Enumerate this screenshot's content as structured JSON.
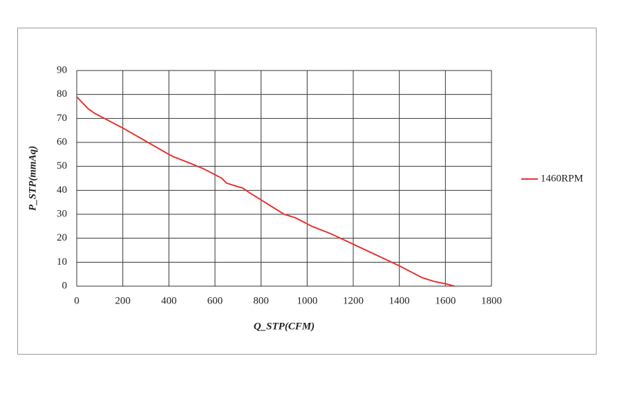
{
  "chart_data": {
    "type": "line",
    "x_label": "Q_STP(CFM)",
    "y_label": "P_STP(mmAq)",
    "x": [
      0,
      20,
      50,
      80,
      150,
      200,
      300,
      400,
      420,
      500,
      550,
      600,
      630,
      650,
      700,
      720,
      750,
      800,
      850,
      900,
      950,
      1000,
      1020,
      1100,
      1200,
      1300,
      1400,
      1450,
      1500,
      1550,
      1600,
      1640
    ],
    "series": [
      {
        "name": "1460RPM",
        "color": "#e8322d",
        "values": [
          79,
          77,
          74,
          72,
          68.5,
          66,
          60.5,
          55,
          54,
          51,
          49,
          46.5,
          45,
          43,
          41.5,
          41,
          39,
          36,
          33,
          30,
          28.5,
          26,
          25,
          22,
          17.5,
          13,
          8.5,
          6,
          3.5,
          2,
          1,
          0
        ]
      }
    ],
    "xlim": [
      0,
      1800
    ],
    "xticks": [
      0,
      200,
      400,
      600,
      800,
      1000,
      1200,
      1400,
      1600,
      1800
    ],
    "ylim": [
      0,
      90
    ],
    "yticks": [
      0,
      10,
      20,
      30,
      40,
      50,
      60,
      70,
      80,
      90
    ],
    "grid": true,
    "legend": "right"
  }
}
